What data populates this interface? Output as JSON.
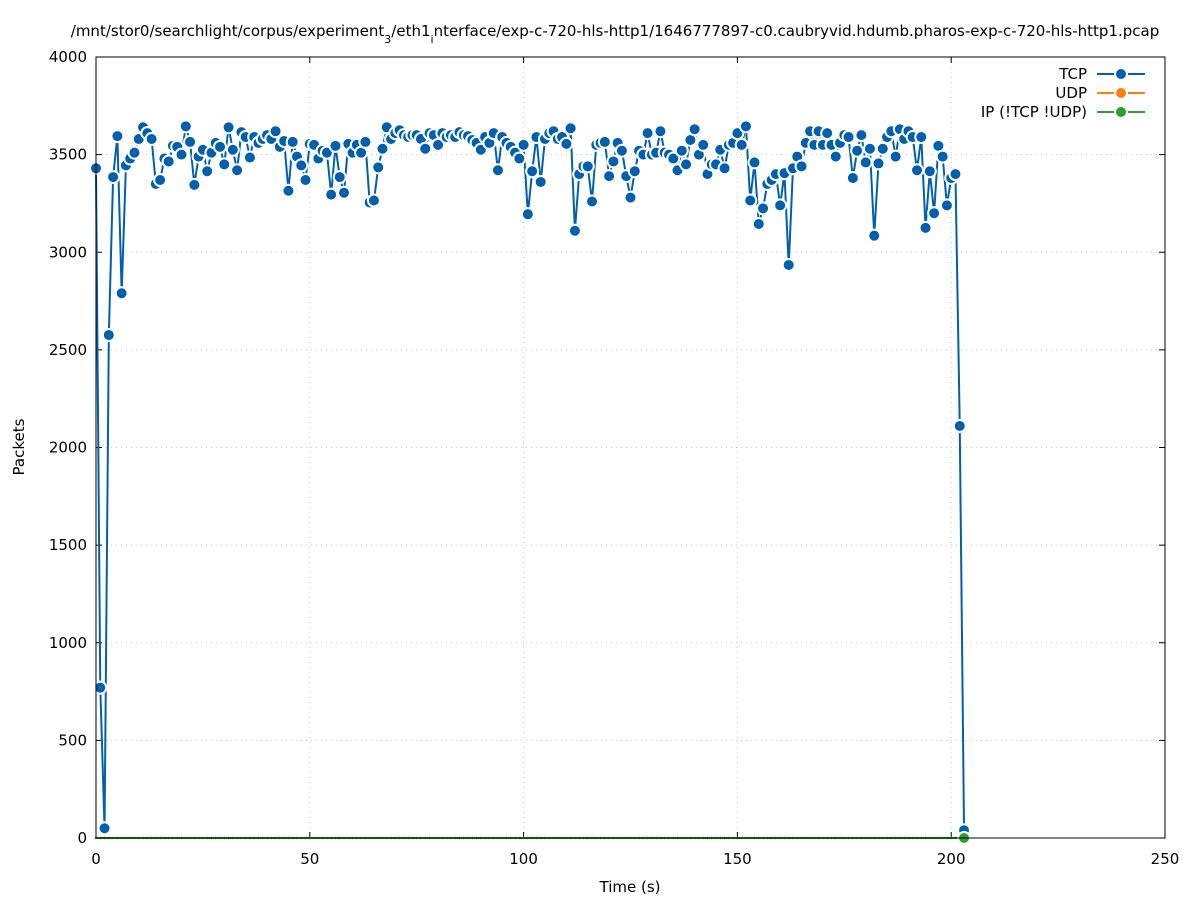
{
  "chart_data": {
    "type": "line",
    "title_parts": [
      {
        "text": "/mnt/stor0/searchlight/corpus/experiment",
        "sub": false
      },
      {
        "text": "3",
        "sub": true
      },
      {
        "text": "/eth1",
        "sub": false
      },
      {
        "text": "i",
        "sub": true
      },
      {
        "text": "nterface/exp-c-720-hls-http1/1646777897-c0.caubryvid.hdumb.pharos-exp-c-720-hls-http1.pcap",
        "sub": false
      }
    ],
    "xlabel": "Time (s)",
    "ylabel": "Packets",
    "xlim": [
      0,
      250
    ],
    "ylim": [
      0,
      4000
    ],
    "xticks": [
      0,
      50,
      100,
      150,
      200,
      250
    ],
    "yticks": [
      0,
      500,
      1000,
      1500,
      2000,
      2500,
      3000,
      3500,
      4000
    ],
    "grid": true,
    "legend_position": "top-right",
    "x_start": 0,
    "series": [
      {
        "name": "TCP",
        "color": "#0060ad",
        "values": [
          3430,
          770,
          50,
          2576,
          3385,
          3595,
          2790,
          3445,
          3480,
          3510,
          3580,
          3640,
          3610,
          3580,
          3350,
          3370,
          3480,
          3465,
          3545,
          3540,
          3500,
          3645,
          3565,
          3345,
          3490,
          3525,
          3415,
          3510,
          3560,
          3540,
          3450,
          3640,
          3525,
          3420,
          3615,
          3590,
          3485,
          3590,
          3560,
          3580,
          3600,
          3580,
          3620,
          3540,
          3570,
          3315,
          3565,
          3490,
          3445,
          3370,
          3555,
          3550,
          3480,
          3520,
          3510,
          3295,
          3545,
          3385,
          3305,
          3555,
          3510,
          3550,
          3510,
          3565,
          3255,
          3265,
          3435,
          3530,
          3640,
          3580,
          3610,
          3625,
          3600,
          3590,
          3600,
          3600,
          3580,
          3530,
          3610,
          3600,
          3550,
          3610,
          3590,
          3600,
          3590,
          3615,
          3600,
          3595,
          3575,
          3560,
          3525,
          3590,
          3560,
          3610,
          3420,
          3590,
          3560,
          3540,
          3510,
          3480,
          3550,
          3195,
          3415,
          3590,
          3360,
          3580,
          3610,
          3620,
          3580,
          3590,
          3555,
          3635,
          3110,
          3400,
          3440,
          3440,
          3260,
          3550,
          3560,
          3565,
          3390,
          3465,
          3560,
          3520,
          3390,
          3280,
          3415,
          3520,
          3500,
          3610,
          3500,
          3510,
          3620,
          3510,
          3500,
          3480,
          3420,
          3520,
          3450,
          3575,
          3630,
          3500,
          3550,
          3400,
          3450,
          3450,
          3525,
          3430,
          3550,
          3560,
          3610,
          3550,
          3645,
          3265,
          3460,
          3145,
          3225,
          3350,
          3370,
          3400,
          3240,
          3405,
          2935,
          3430,
          3490,
          3440,
          3560,
          3620,
          3550,
          3620,
          3550,
          3610,
          3550,
          3490,
          3560,
          3600,
          3590,
          3380,
          3520,
          3600,
          3460,
          3530,
          3085,
          3455,
          3530,
          3590,
          3620,
          3490,
          3630,
          3580,
          3620,
          3590,
          3420,
          3590,
          3125,
          3415,
          3200,
          3545,
          3490,
          3240,
          3380,
          3400,
          2110,
          40
        ]
      },
      {
        "name": "UDP",
        "color": "#ff7f0e",
        "values": "zeros"
      },
      {
        "name": "IP (!TCP  !UDP)",
        "color": "#2ca02c",
        "values": "zeros"
      }
    ]
  }
}
